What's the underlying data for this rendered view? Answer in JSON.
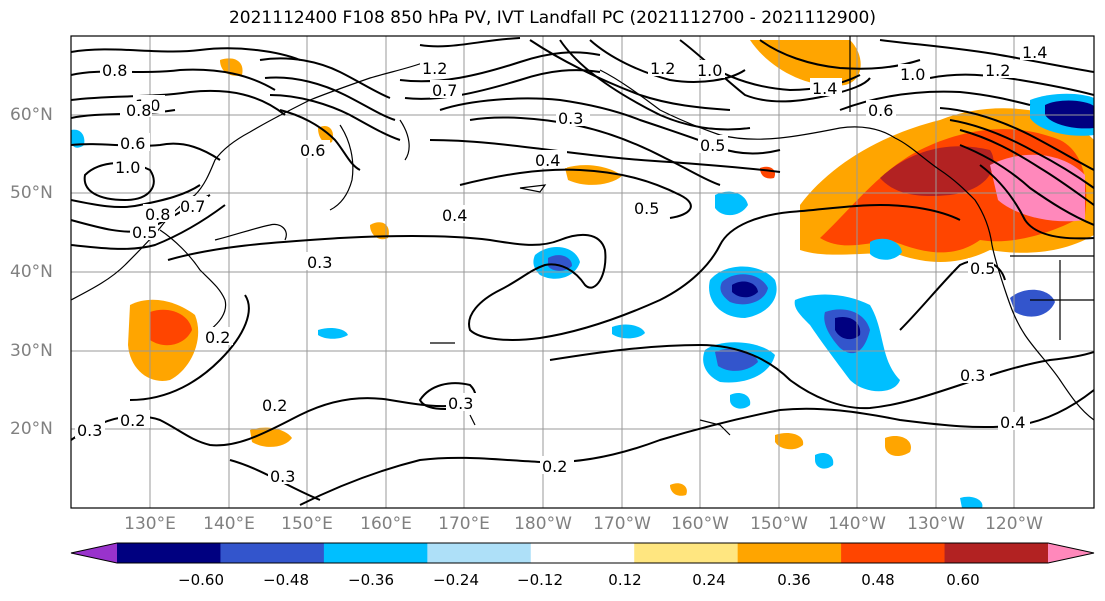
{
  "title": "2021112400 F108 850 hPa PV, IVT Landfall PC (2021112700 - 2021112900)",
  "latitude_labels": [
    "60°N",
    "50°N",
    "40°N",
    "30°N",
    "20°N"
  ],
  "longitude_labels": [
    "130°E",
    "140°E",
    "150°E",
    "160°E",
    "170°E",
    "180°W",
    "170°W",
    "160°W",
    "150°W",
    "140°W",
    "130°W",
    "120°W"
  ],
  "colorbar": {
    "tick_labels": [
      "−0.60",
      "−0.48",
      "−0.36",
      "−0.24",
      "−0.12",
      "0.12",
      "0.24",
      "0.36",
      "0.48",
      "0.60"
    ],
    "colors": [
      "#9933cc",
      "#000080",
      "#3355cc",
      "#00bfff",
      "#aee0f8",
      "#ffffff",
      "#ffe680",
      "#ffa500",
      "#ff4500",
      "#b22222",
      "#ff88bb"
    ]
  },
  "contour_labels": [
    "0.8",
    "1.0",
    "0.6",
    "1.0",
    "0.8",
    "0.7",
    "0.5",
    "0.6",
    "0.7",
    "0.8",
    "1.2",
    "0.3",
    "0.4",
    "0.4",
    "0.5",
    "0.3",
    "1.0",
    "1.2",
    "0.5",
    "1.4",
    "0.6",
    "1.0",
    "1.2",
    "1.4",
    "0.2",
    "0.2",
    "0.3",
    "0.2",
    "0.3",
    "0.2",
    "0.3",
    "0.3",
    "0.4",
    "0.5"
  ]
}
